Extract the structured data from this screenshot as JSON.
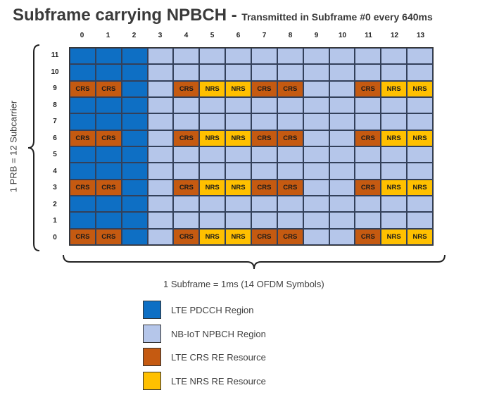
{
  "title": {
    "main": "Subframe carrying NPBCH -",
    "sub": "Transmitted in Subframe #0 every 640ms"
  },
  "columns": [
    "0",
    "1",
    "2",
    "3",
    "4",
    "5",
    "6",
    "7",
    "8",
    "9",
    "10",
    "11",
    "12",
    "13"
  ],
  "rows": [
    {
      "label": "11",
      "cells": [
        "pdcch",
        "pdcch",
        "pdcch",
        "npbch",
        "npbch",
        "npbch",
        "npbch",
        "npbch",
        "npbch",
        "npbch",
        "npbch",
        "npbch",
        "npbch",
        "npbch"
      ]
    },
    {
      "label": "10",
      "cells": [
        "pdcch",
        "pdcch",
        "pdcch",
        "npbch",
        "npbch",
        "npbch",
        "npbch",
        "npbch",
        "npbch",
        "npbch",
        "npbch",
        "npbch",
        "npbch",
        "npbch"
      ]
    },
    {
      "label": "9",
      "cells": [
        "crs",
        "crs",
        "pdcch",
        "npbch",
        "crs",
        "nrs",
        "nrs",
        "crs",
        "crs",
        "npbch",
        "npbch",
        "crs",
        "nrs",
        "nrs"
      ]
    },
    {
      "label": "8",
      "cells": [
        "pdcch",
        "pdcch",
        "pdcch",
        "npbch",
        "npbch",
        "npbch",
        "npbch",
        "npbch",
        "npbch",
        "npbch",
        "npbch",
        "npbch",
        "npbch",
        "npbch"
      ]
    },
    {
      "label": "7",
      "cells": [
        "pdcch",
        "pdcch",
        "pdcch",
        "npbch",
        "npbch",
        "npbch",
        "npbch",
        "npbch",
        "npbch",
        "npbch",
        "npbch",
        "npbch",
        "npbch",
        "npbch"
      ]
    },
    {
      "label": "6",
      "cells": [
        "crs",
        "crs",
        "pdcch",
        "npbch",
        "crs",
        "nrs",
        "nrs",
        "crs",
        "crs",
        "npbch",
        "npbch",
        "crs",
        "nrs",
        "nrs"
      ]
    },
    {
      "label": "5",
      "cells": [
        "pdcch",
        "pdcch",
        "pdcch",
        "npbch",
        "npbch",
        "npbch",
        "npbch",
        "npbch",
        "npbch",
        "npbch",
        "npbch",
        "npbch",
        "npbch",
        "npbch"
      ]
    },
    {
      "label": "4",
      "cells": [
        "pdcch",
        "pdcch",
        "pdcch",
        "npbch",
        "npbch",
        "npbch",
        "npbch",
        "npbch",
        "npbch",
        "npbch",
        "npbch",
        "npbch",
        "npbch",
        "npbch"
      ]
    },
    {
      "label": "3",
      "cells": [
        "crs",
        "crs",
        "pdcch",
        "npbch",
        "crs",
        "nrs",
        "nrs",
        "crs",
        "crs",
        "npbch",
        "npbch",
        "crs",
        "nrs",
        "nrs"
      ]
    },
    {
      "label": "2",
      "cells": [
        "pdcch",
        "pdcch",
        "pdcch",
        "npbch",
        "npbch",
        "npbch",
        "npbch",
        "npbch",
        "npbch",
        "npbch",
        "npbch",
        "npbch",
        "npbch",
        "npbch"
      ]
    },
    {
      "label": "1",
      "cells": [
        "pdcch",
        "pdcch",
        "pdcch",
        "npbch",
        "npbch",
        "npbch",
        "npbch",
        "npbch",
        "npbch",
        "npbch",
        "npbch",
        "npbch",
        "npbch",
        "npbch"
      ]
    },
    {
      "label": "0",
      "cells": [
        "crs",
        "crs",
        "pdcch",
        "npbch",
        "crs",
        "nrs",
        "nrs",
        "crs",
        "crs",
        "npbch",
        "npbch",
        "crs",
        "nrs",
        "nrs"
      ]
    }
  ],
  "cell_text": {
    "crs": "CRS",
    "nrs": "NRS"
  },
  "y_axis_label": "1 PRB = 12 Subcarrier",
  "x_axis_label": "1 Subframe = 1ms (14 OFDM Symbols)",
  "legend": [
    {
      "type": "pdcch",
      "label": "LTE PDCCH Region",
      "color": "#0e6fc4"
    },
    {
      "type": "npbch",
      "label": "NB-IoT NPBCH Region",
      "color": "#b5c6ea"
    },
    {
      "type": "crs",
      "label": "LTE CRS RE Resource",
      "color": "#c55a11"
    },
    {
      "type": "nrs",
      "label": "LTE NRS RE Resource",
      "color": "#ffc000"
    }
  ]
}
